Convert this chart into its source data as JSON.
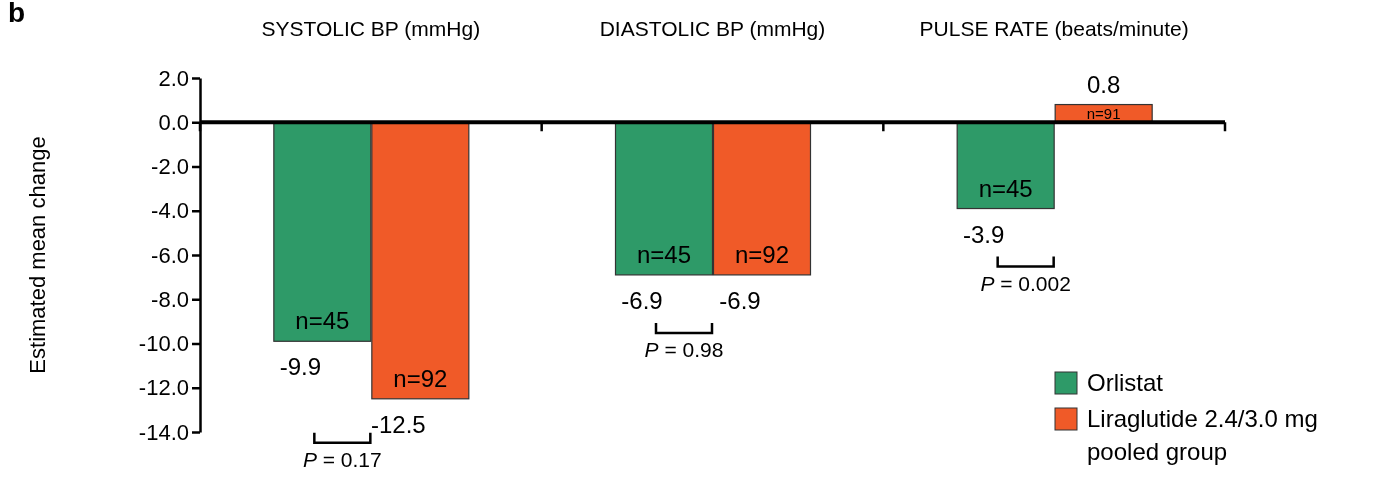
{
  "chart_data": {
    "type": "bar",
    "ylabel": "Estimated mean change",
    "categories": [
      "SYSTOLIC BP (mmHg)",
      "DIASTOLIC BP (mmHg)",
      "PULSE RATE (beats/minute)"
    ],
    "series": [
      {
        "name": "Orlistat",
        "color": "#2e9a68",
        "values": [
          -9.9,
          -6.9,
          -3.9
        ]
      },
      {
        "name": "Liraglutide 2.4/3.0 mg pooled group",
        "color": "#f05a28",
        "values": [
          -12.5,
          -6.9,
          0.8
        ]
      }
    ],
    "ylim": [
      -14,
      2
    ],
    "yticks": [
      {
        "value": 2,
        "label": "2.0"
      },
      {
        "value": 0,
        "label": "0.0"
      },
      {
        "value": -2,
        "label": "-2.0"
      },
      {
        "value": -4,
        "label": "-4.0"
      },
      {
        "value": -6,
        "label": "-6.0"
      },
      {
        "value": -8,
        "label": "-8.0"
      },
      {
        "value": -10,
        "label": "-10.0"
      },
      {
        "value": -12,
        "label": "-12.0"
      },
      {
        "value": -14,
        "label": "-14.0"
      }
    ],
    "data_labels": true,
    "legend": "bottom right",
    "annotations": [
      "b",
      {
        "text": "n=45",
        "x": "SYSTOLIC BP (mmHg)",
        "y": -9.9
      },
      {
        "text": "n=92",
        "x": "SYSTOLIC BP (mmHg)",
        "y": -12.5
      },
      {
        "text": "n=45",
        "x": "DIASTOLIC BP (mmHg)",
        "y": -6.9
      },
      {
        "text": "n=92",
        "x": "DIASTOLIC BP (mmHg)",
        "y": -6.9
      },
      {
        "text": "n=45",
        "x": "PULSE RATE (beats/minute)",
        "y": -3.9
      },
      {
        "text": "n=91",
        "x": "PULSE RATE (beats/minute)",
        "y": 0.8
      },
      "P = 0.17",
      "P = 0.98",
      "P = 0.002"
    ]
  }
}
